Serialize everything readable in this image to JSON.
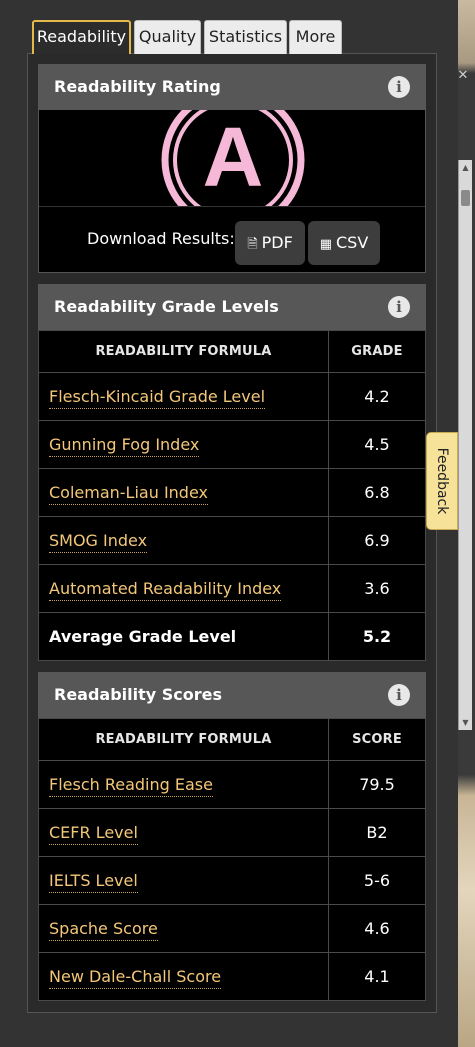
{
  "tabs": [
    {
      "label": "Readability",
      "active": true
    },
    {
      "label": "Quality",
      "active": false
    },
    {
      "label": "Statistics",
      "active": false
    },
    {
      "label": "More",
      "active": false
    }
  ],
  "rating": {
    "header": "Readability Rating",
    "grade_letter": "A",
    "download_label": "Download Results:",
    "pdf_label": "PDF",
    "csv_label": "CSV"
  },
  "grade_levels": {
    "header": "Readability Grade Levels",
    "col_formula": "READABILITY FORMULA",
    "col_value": "GRADE",
    "rows": [
      {
        "name": "Flesch-Kincaid Grade Level",
        "value": "4.2"
      },
      {
        "name": "Gunning Fog Index",
        "value": "4.5"
      },
      {
        "name": "Coleman-Liau Index",
        "value": "6.8"
      },
      {
        "name": "SMOG Index",
        "value": "6.9"
      },
      {
        "name": "Automated Readability Index",
        "value": "3.6"
      }
    ],
    "average": {
      "name": "Average Grade Level",
      "value": "5.2"
    }
  },
  "scores": {
    "header": "Readability Scores",
    "col_formula": "READABILITY FORMULA",
    "col_value": "SCORE",
    "rows": [
      {
        "name": "Flesch Reading Ease",
        "value": "79.5"
      },
      {
        "name": "CEFR Level",
        "value": "B2"
      },
      {
        "name": "IELTS Level",
        "value": "5-6"
      },
      {
        "name": "Spache Score",
        "value": "4.6"
      },
      {
        "name": "New Dale-Chall Score",
        "value": "4.1"
      }
    ]
  },
  "feedback_label": "Feedback",
  "colors": {
    "accent": "#e4b949",
    "link": "#f3c77a",
    "rating_pink": "#f5b8d6"
  }
}
